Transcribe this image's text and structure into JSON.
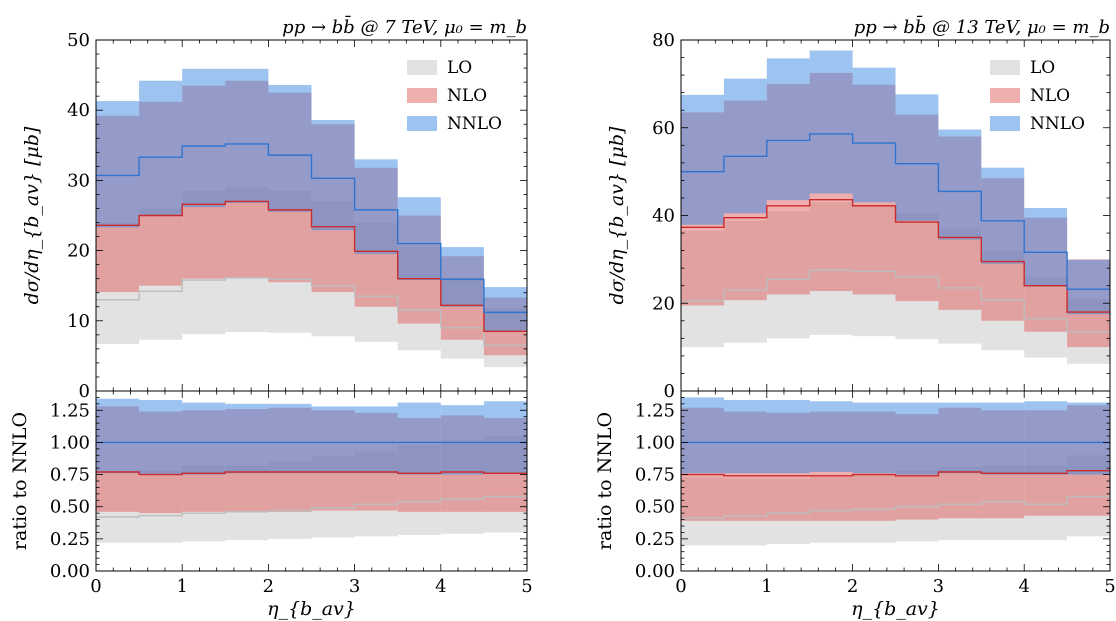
{
  "chart_data": [
    {
      "type": "step-band",
      "title": "pp → bb̄ @ 7 TeV, μ₀ = m_b",
      "xlabel": "η_{b_av}",
      "ylabel_main": "dσ/dη_{b_av} [μb]",
      "ylabel_ratio": "ratio to NNLO",
      "xlim": [
        0,
        5
      ],
      "ylim_main": [
        0,
        50
      ],
      "ylim_ratio": [
        0,
        1.4
      ],
      "xticks": [
        "0",
        "1",
        "2",
        "3",
        "4",
        "5"
      ],
      "yticks_main": [
        "0",
        "10",
        "20",
        "30",
        "40",
        "50"
      ],
      "yticks_ratio": [
        "0.00",
        "0.25",
        "0.50",
        "0.75",
        "1.00",
        "1.25"
      ],
      "legend": "top-right",
      "bin_edges": [
        0,
        0.5,
        1,
        1.5,
        2,
        2.5,
        3,
        3.5,
        4,
        4.5,
        5
      ],
      "series": [
        {
          "name": "LO",
          "color": "#c8c8c8",
          "central": [
            13.0,
            14.2,
            15.8,
            16.1,
            15.9,
            15.0,
            13.5,
            11.5,
            9.0,
            6.5
          ],
          "lower": [
            6.7,
            7.3,
            8.1,
            8.4,
            8.3,
            7.8,
            7.0,
            5.8,
            4.6,
            3.4
          ],
          "upper": [
            24.0,
            26.0,
            28.5,
            29.0,
            28.5,
            27.0,
            24.0,
            20.5,
            16.2,
            11.8
          ]
        },
        {
          "name": "NLO",
          "color": "#e06666",
          "central": [
            23.6,
            25.0,
            26.6,
            27.0,
            25.8,
            23.4,
            19.9,
            16.0,
            12.2,
            8.5
          ],
          "lower": [
            14.1,
            15.0,
            16.0,
            16.2,
            15.5,
            14.1,
            12.0,
            9.6,
            7.3,
            5.1
          ],
          "upper": [
            39.2,
            41.2,
            43.5,
            44.2,
            42.5,
            38.0,
            31.8,
            25.0,
            19.2,
            13.3
          ]
        },
        {
          "name": "NNLO",
          "color": "#4a90e2",
          "central": [
            30.7,
            33.3,
            34.9,
            35.2,
            33.6,
            30.3,
            25.8,
            21.0,
            15.9,
            11.2
          ],
          "lower": [
            23.3,
            25.0,
            26.2,
            26.8,
            25.5,
            22.9,
            19.5,
            15.8,
            12.0,
            8.5
          ],
          "upper": [
            41.3,
            44.2,
            45.9,
            45.9,
            43.6,
            38.6,
            33.0,
            27.6,
            20.5,
            14.8
          ]
        }
      ],
      "ratio": [
        {
          "name": "LO",
          "central": [
            0.42,
            0.43,
            0.45,
            0.46,
            0.47,
            0.49,
            0.52,
            0.54,
            0.56,
            0.58
          ],
          "lower": [
            0.22,
            0.22,
            0.23,
            0.24,
            0.25,
            0.26,
            0.27,
            0.28,
            0.29,
            0.3
          ],
          "upper": [
            0.78,
            0.78,
            0.82,
            0.82,
            0.85,
            0.89,
            0.93,
            0.98,
            1.02,
            1.05
          ]
        },
        {
          "name": "NLO",
          "central": [
            0.77,
            0.75,
            0.76,
            0.77,
            0.77,
            0.77,
            0.77,
            0.76,
            0.77,
            0.76
          ],
          "lower": [
            0.46,
            0.45,
            0.46,
            0.46,
            0.46,
            0.47,
            0.47,
            0.46,
            0.46,
            0.46
          ],
          "upper": [
            1.28,
            1.24,
            1.25,
            1.26,
            1.27,
            1.25,
            1.23,
            1.19,
            1.21,
            1.19
          ]
        },
        {
          "name": "NNLO",
          "central": [
            1.0,
            1.0,
            1.0,
            1.0,
            1.0,
            1.0,
            1.0,
            1.0,
            1.0,
            1.0
          ],
          "lower": [
            0.76,
            0.75,
            0.75,
            0.76,
            0.76,
            0.76,
            0.76,
            0.75,
            0.75,
            0.76
          ],
          "upper": [
            1.34,
            1.33,
            1.31,
            1.3,
            1.3,
            1.28,
            1.28,
            1.31,
            1.29,
            1.32
          ]
        }
      ]
    },
    {
      "type": "step-band",
      "title": "pp → bb̄ @ 13 TeV, μ₀ = m_b",
      "xlabel": "η_{b_av}",
      "ylabel_main": "dσ/dη_{b_av} [μb]",
      "ylabel_ratio": "ratio to NNLO",
      "xlim": [
        0,
        5
      ],
      "ylim_main": [
        0,
        80
      ],
      "ylim_ratio": [
        0,
        1.4
      ],
      "xticks": [
        "0",
        "1",
        "2",
        "3",
        "4",
        "5"
      ],
      "yticks_main": [
        "0",
        "20",
        "40",
        "60",
        "80"
      ],
      "yticks_ratio": [
        "0.00",
        "0.25",
        "0.50",
        "0.75",
        "1.00",
        "1.25"
      ],
      "legend": "top-right",
      "bin_edges": [
        0,
        0.5,
        1,
        1.5,
        2,
        2.5,
        3,
        3.5,
        4,
        4.5,
        5
      ],
      "series": [
        {
          "name": "LO",
          "color": "#c8c8c8",
          "central": [
            20.5,
            23.0,
            25.5,
            27.5,
            27.3,
            26.0,
            23.5,
            20.8,
            16.5,
            13.5
          ],
          "lower": [
            10.0,
            11.0,
            12.0,
            12.8,
            12.5,
            11.8,
            10.8,
            9.3,
            7.6,
            6.2
          ],
          "upper": [
            36.5,
            38.8,
            41.0,
            43.0,
            42.5,
            40.5,
            37.0,
            32.0,
            26.0,
            21.0
          ]
        },
        {
          "name": "NLO",
          "color": "#e06666",
          "central": [
            37.3,
            39.5,
            42.2,
            43.6,
            42.2,
            38.5,
            35.0,
            29.5,
            24.0,
            18.0
          ],
          "lower": [
            19.5,
            20.7,
            22.0,
            22.8,
            22.0,
            20.5,
            18.5,
            16.0,
            13.5,
            10.0
          ],
          "upper": [
            63.5,
            66.2,
            70.0,
            72.5,
            69.8,
            63.0,
            58.0,
            48.5,
            39.5,
            30.0
          ]
        },
        {
          "name": "NNLO",
          "color": "#4a90e2",
          "central": [
            50.0,
            53.5,
            57.1,
            58.6,
            56.5,
            51.8,
            45.5,
            38.8,
            31.6,
            23.2
          ],
          "lower": [
            37.9,
            40.5,
            43.5,
            45.0,
            43.0,
            38.8,
            34.5,
            29.0,
            23.8,
            17.5
          ],
          "upper": [
            67.5,
            71.2,
            75.8,
            77.6,
            73.7,
            67.6,
            59.6,
            50.9,
            41.7,
            29.9
          ]
        }
      ],
      "ratio": [
        {
          "name": "LO",
          "central": [
            0.41,
            0.43,
            0.45,
            0.47,
            0.48,
            0.5,
            0.52,
            0.54,
            0.52,
            0.58
          ],
          "lower": [
            0.2,
            0.2,
            0.21,
            0.22,
            0.22,
            0.23,
            0.24,
            0.24,
            0.24,
            0.27
          ],
          "upper": [
            0.73,
            0.72,
            0.72,
            0.73,
            0.75,
            0.78,
            0.81,
            0.82,
            0.82,
            0.9
          ]
        },
        {
          "name": "NLO",
          "central": [
            0.75,
            0.74,
            0.74,
            0.74,
            0.75,
            0.74,
            0.77,
            0.76,
            0.76,
            0.78
          ],
          "lower": [
            0.39,
            0.39,
            0.39,
            0.39,
            0.39,
            0.4,
            0.41,
            0.41,
            0.43,
            0.43
          ],
          "upper": [
            1.27,
            1.24,
            1.23,
            1.24,
            1.24,
            1.22,
            1.27,
            1.25,
            1.25,
            1.29
          ]
        },
        {
          "name": "NNLO",
          "central": [
            1.0,
            1.0,
            1.0,
            1.0,
            1.0,
            1.0,
            1.0,
            1.0,
            1.0,
            1.0
          ],
          "lower": [
            0.76,
            0.76,
            0.76,
            0.77,
            0.76,
            0.75,
            0.76,
            0.75,
            0.75,
            0.75
          ],
          "upper": [
            1.35,
            1.33,
            1.33,
            1.32,
            1.31,
            1.31,
            1.31,
            1.31,
            1.32,
            1.31
          ]
        }
      ]
    }
  ]
}
